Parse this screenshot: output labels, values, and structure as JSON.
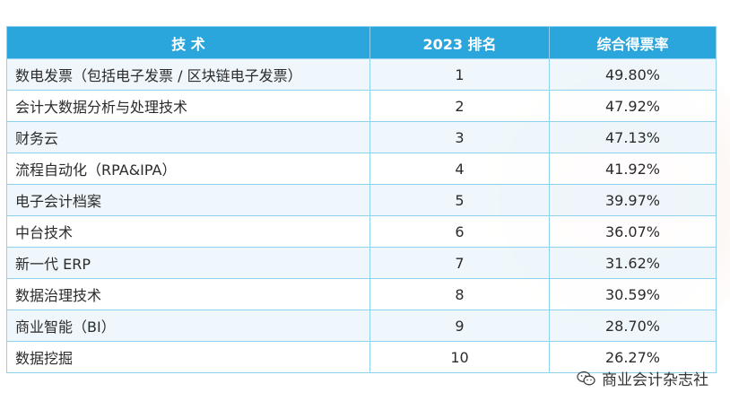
{
  "table": {
    "headers": {
      "tech": "技 术",
      "rank": "2023 排名",
      "rate": "综合得票率"
    },
    "rows": [
      {
        "tech": "数电发票（包括电子发票 / 区块链电子发票）",
        "rank": "1",
        "rate": "49.80%"
      },
      {
        "tech": "会计大数据分析与处理技术",
        "rank": "2",
        "rate": "47.92%"
      },
      {
        "tech": "财务云",
        "rank": "3",
        "rate": "47.13%"
      },
      {
        "tech": "流程自动化（RPA&IPA）",
        "rank": "4",
        "rate": "41.92%"
      },
      {
        "tech": "电子会计档案",
        "rank": "5",
        "rate": "39.97%"
      },
      {
        "tech": "中台技术",
        "rank": "6",
        "rate": "36.07%"
      },
      {
        "tech": "新一代 ERP",
        "rank": "7",
        "rate": "31.62%"
      },
      {
        "tech": "数据治理技术",
        "rank": "8",
        "rate": "30.59%"
      },
      {
        "tech": "商业智能（BI）",
        "rank": "9",
        "rate": "28.70%"
      },
      {
        "tech": "数据挖掘",
        "rank": "10",
        "rate": "26.27%"
      }
    ]
  },
  "source": {
    "label": "商业会计杂志社",
    "icon": "wechat-icon"
  },
  "colors": {
    "header_bg": "#2aa6dc",
    "border": "#8fd0ec",
    "stripe": "#ecf6fb"
  }
}
